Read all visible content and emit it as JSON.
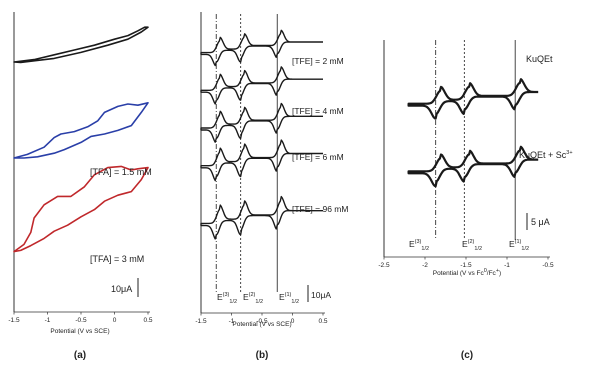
{
  "chart_data": [
    {
      "id": "a",
      "type": "line",
      "panel_label": "(a)",
      "xlabel": "Potential (V vs SCE)",
      "xlim": [
        -1.5,
        0.5
      ],
      "x_ticks": [
        "-1.5",
        "-1",
        "-0.5",
        "0",
        "0.5"
      ],
      "scale_bar": "10μA",
      "series": [
        {
          "name": "",
          "color": "#1a1a1a",
          "offset": 0,
          "forward": [
            [
              -1.5,
              0.0
            ],
            [
              -1.2,
              0.1
            ],
            [
              -0.9,
              0.3
            ],
            [
              -0.6,
              0.5
            ],
            [
              -0.3,
              0.7
            ],
            [
              0.0,
              0.95
            ],
            [
              0.2,
              1.1
            ],
            [
              0.35,
              1.3
            ],
            [
              0.45,
              1.45
            ],
            [
              0.5,
              1.45
            ]
          ],
          "reverse": [
            [
              0.5,
              1.45
            ],
            [
              0.4,
              1.25
            ],
            [
              0.2,
              0.95
            ],
            [
              -0.1,
              0.7
            ],
            [
              -0.5,
              0.4
            ],
            [
              -0.9,
              0.15
            ],
            [
              -1.2,
              0.05
            ],
            [
              -1.4,
              -0.02
            ],
            [
              -1.5,
              0.0
            ]
          ]
        },
        {
          "name": "[TFA] = 1.5 mM",
          "color": "#2a3fa8",
          "offset": -4.0,
          "forward": [
            [
              -1.5,
              0.0
            ],
            [
              -1.3,
              0.15
            ],
            [
              -1.05,
              0.45
            ],
            [
              -0.9,
              0.85
            ],
            [
              -0.8,
              1.0
            ],
            [
              -0.6,
              1.1
            ],
            [
              -0.4,
              1.3
            ],
            [
              -0.25,
              1.55
            ],
            [
              -0.15,
              1.9
            ],
            [
              0.05,
              2.15
            ],
            [
              0.2,
              2.25
            ],
            [
              0.35,
              2.2
            ],
            [
              0.5,
              2.3
            ]
          ],
          "reverse": [
            [
              0.5,
              2.3
            ],
            [
              0.4,
              1.9
            ],
            [
              0.25,
              1.35
            ],
            [
              0.05,
              1.15
            ],
            [
              -0.15,
              1.0
            ],
            [
              -0.35,
              0.9
            ],
            [
              -0.5,
              0.65
            ],
            [
              -0.75,
              0.35
            ],
            [
              -0.9,
              0.2
            ],
            [
              -1.15,
              0.05
            ],
            [
              -1.35,
              0.0
            ],
            [
              -1.5,
              0.0
            ]
          ]
        },
        {
          "name": "[TFA] = 3 mM",
          "color": "#c0282b",
          "offset": -7.9,
          "forward": [
            [
              -1.5,
              0.0
            ],
            [
              -1.35,
              0.3
            ],
            [
              -1.25,
              0.8
            ],
            [
              -1.2,
              1.4
            ],
            [
              -1.05,
              1.95
            ],
            [
              -0.85,
              2.3
            ],
            [
              -0.65,
              2.3
            ],
            [
              -0.45,
              2.7
            ],
            [
              -0.3,
              3.2
            ],
            [
              -0.1,
              3.5
            ],
            [
              0.1,
              3.55
            ],
            [
              0.25,
              3.4
            ],
            [
              0.35,
              3.45
            ],
            [
              0.5,
              3.5
            ]
          ],
          "reverse": [
            [
              0.5,
              3.5
            ],
            [
              0.4,
              3.0
            ],
            [
              0.25,
              2.5
            ],
            [
              0.05,
              2.35
            ],
            [
              -0.15,
              2.1
            ],
            [
              -0.3,
              1.75
            ],
            [
              -0.5,
              1.45
            ],
            [
              -0.7,
              1.1
            ],
            [
              -0.9,
              0.85
            ],
            [
              -1.05,
              0.55
            ],
            [
              -1.25,
              0.25
            ],
            [
              -1.4,
              0.05
            ],
            [
              -1.5,
              0.0
            ]
          ]
        }
      ]
    },
    {
      "id": "b",
      "type": "line",
      "panel_label": "(b)",
      "xlabel": "Potential (V vs SCE)",
      "xlim": [
        -1.5,
        0.5
      ],
      "x_ticks": [
        "-1.5",
        "-1",
        "-0.5",
        "0",
        "0.5"
      ],
      "scale_bar": "10μA",
      "reference_lines": [
        {
          "label": "E(3)1/2",
          "x": -1.25,
          "style": "dashdot"
        },
        {
          "label": "E(2)1/2",
          "x": -0.85,
          "style": "dotted"
        },
        {
          "label": "E(1)1/2",
          "x": -0.25,
          "style": "solid"
        }
      ],
      "series": [
        {
          "name": "",
          "offset": 0.0,
          "amp": 1.0
        },
        {
          "name": "[TFE] = 2 mM",
          "offset": -3.15,
          "amp": 1.05
        },
        {
          "name": "[TFE] = 4 mM",
          "offset": -6.3,
          "amp": 1.1
        },
        {
          "name": "[TFE] = 6 mM",
          "offset": -9.45,
          "amp": 1.15
        },
        {
          "name": "[TFE] = 96 mM",
          "offset": -12.6,
          "amp": 1.2
        }
      ],
      "peaks": [
        -1.25,
        -0.85,
        -0.25
      ]
    },
    {
      "id": "c",
      "type": "line",
      "panel_label": "(c)",
      "xlabel": "Potential (V vs Fc0/Fc+)",
      "xlim": [
        -2.5,
        -0.5
      ],
      "x_ticks": [
        "-2.5",
        "-2",
        "-1.5",
        "-1",
        "-0.5"
      ],
      "scale_bar": "5 μA",
      "reference_lines": [
        {
          "label": "E(3)1/2",
          "x": -1.87,
          "style": "dashdot"
        },
        {
          "label": "E(2)1/2",
          "x": -1.52,
          "style": "dotted"
        },
        {
          "label": "E(1)1/2",
          "x": -0.9,
          "style": "solid"
        }
      ],
      "series": [
        {
          "name": "KuQEt",
          "offset": 0.0
        },
        {
          "name": "KuQEt + Sc3+",
          "offset": -5.2
        }
      ],
      "peaks": [
        -1.87,
        -1.52,
        -0.9
      ]
    }
  ],
  "labels": {
    "a_title_tfa1": "[TFA] = 1.5 mM",
    "a_title_tfa3": "[TFA] = 3 mM",
    "b_tfe2": "[TFE] = 2 mM",
    "b_tfe4": "[TFE] = 4 mM",
    "b_tfe6": "[TFE] = 6 mM",
    "b_tfe96": "[TFE] = 96 mM",
    "c_kuqet": "KuQEt",
    "c_kuqet_sc": "KuQEt + Sc",
    "c_sc_sup": "3+",
    "c_scale": "5 μA",
    "b_scale": "10μA",
    "a_scale": "10μA",
    "e_main": "E",
    "e3": "(3)",
    "e2": "(2)",
    "e1": "(1)",
    "half": "1/2",
    "c_xlabel_pre": "Potential (V vs Fc",
    "c_xlabel_sup0": "0",
    "c_xlabel_mid": "/Fc",
    "c_xlabel_sup1": "+",
    "c_xlabel_post": ")"
  }
}
